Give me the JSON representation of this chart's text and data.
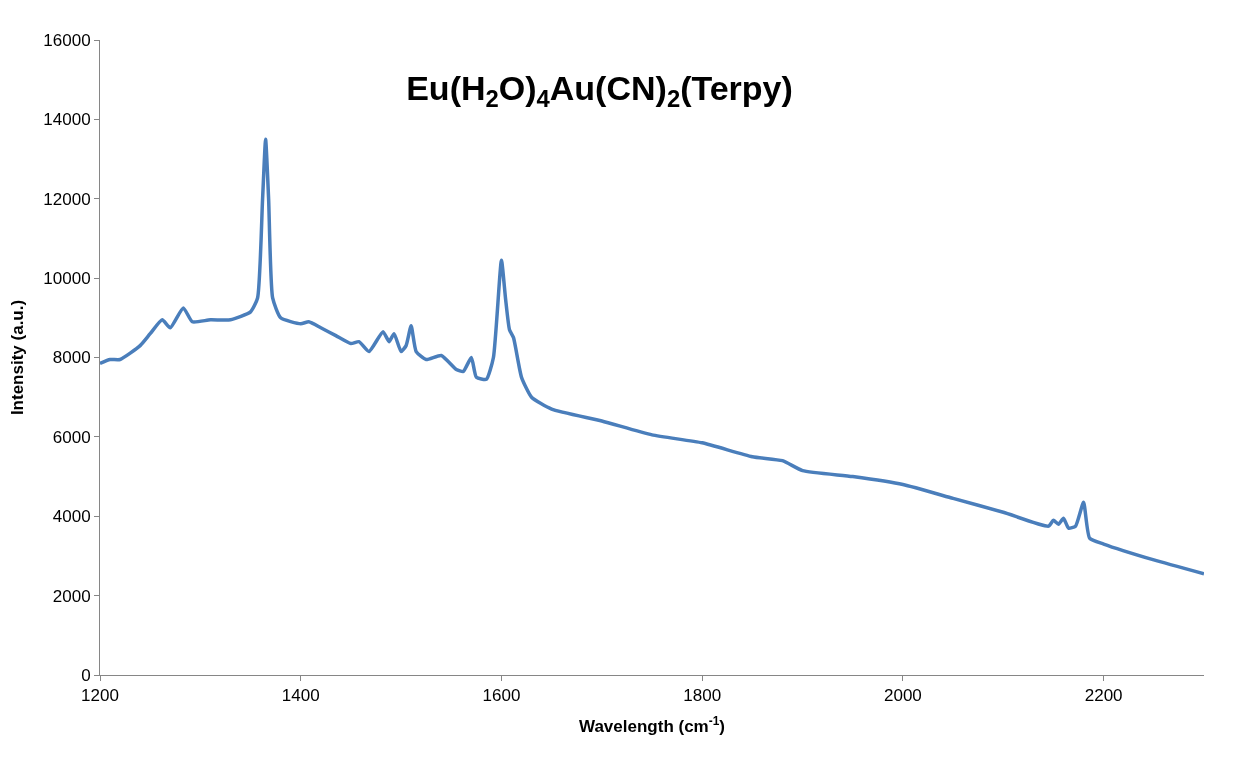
{
  "chart_data": {
    "type": "line",
    "title": "Eu(H$_{2}$O)$_{4}$Au(CN)$_{2}$(Terpy)",
    "xlabel": "Wavelength (cm$^{-1}$)",
    "ylabel": "Intensity (a.u.)",
    "x": [
      1200,
      1210,
      1220,
      1240,
      1250,
      1262,
      1270,
      1283,
      1292,
      1310,
      1330,
      1350,
      1357,
      1362,
      1365,
      1368,
      1372,
      1380,
      1400,
      1408,
      1420,
      1435,
      1450,
      1458,
      1468,
      1482,
      1488,
      1493,
      1500,
      1505,
      1510,
      1515,
      1525,
      1540,
      1555,
      1562,
      1570,
      1575,
      1585,
      1592,
      1600,
      1604,
      1608,
      1612,
      1620,
      1630,
      1650,
      1700,
      1750,
      1800,
      1850,
      1880,
      1900,
      1950,
      2000,
      2050,
      2100,
      2145,
      2150,
      2155,
      2160,
      2165,
      2172,
      2180,
      2186,
      2200,
      2250,
      2300
    ],
    "series": [
      {
        "color": "#4a7ebb",
        "values": [
          7850,
          7950,
          7950,
          8300,
          8600,
          8950,
          8750,
          9250,
          8900,
          8950,
          8950,
          9150,
          9500,
          12000,
          13500,
          12000,
          9500,
          9000,
          8850,
          8900,
          8750,
          8550,
          8350,
          8400,
          8150,
          8650,
          8400,
          8600,
          8150,
          8300,
          8800,
          8150,
          7950,
          8050,
          7700,
          7650,
          8000,
          7500,
          7450,
          8000,
          10450,
          9500,
          8700,
          8500,
          7500,
          7000,
          6700,
          6400,
          6050,
          5850,
          5500,
          5400,
          5150,
          5000,
          4800,
          4450,
          4100,
          3750,
          3900,
          3800,
          3950,
          3700,
          3750,
          4350,
          3450,
          3300,
          2900,
          2550
        ]
      }
    ],
    "xlim": [
      1200,
      2300
    ],
    "xticks": [
      1200,
      1400,
      1600,
      1800,
      2000,
      2200
    ],
    "ylim": [
      0,
      16000
    ],
    "yticks": [
      0,
      2000,
      4000,
      6000,
      8000,
      10000,
      12000,
      14000,
      16000
    ],
    "marker": "none",
    "line_style": "solid"
  }
}
